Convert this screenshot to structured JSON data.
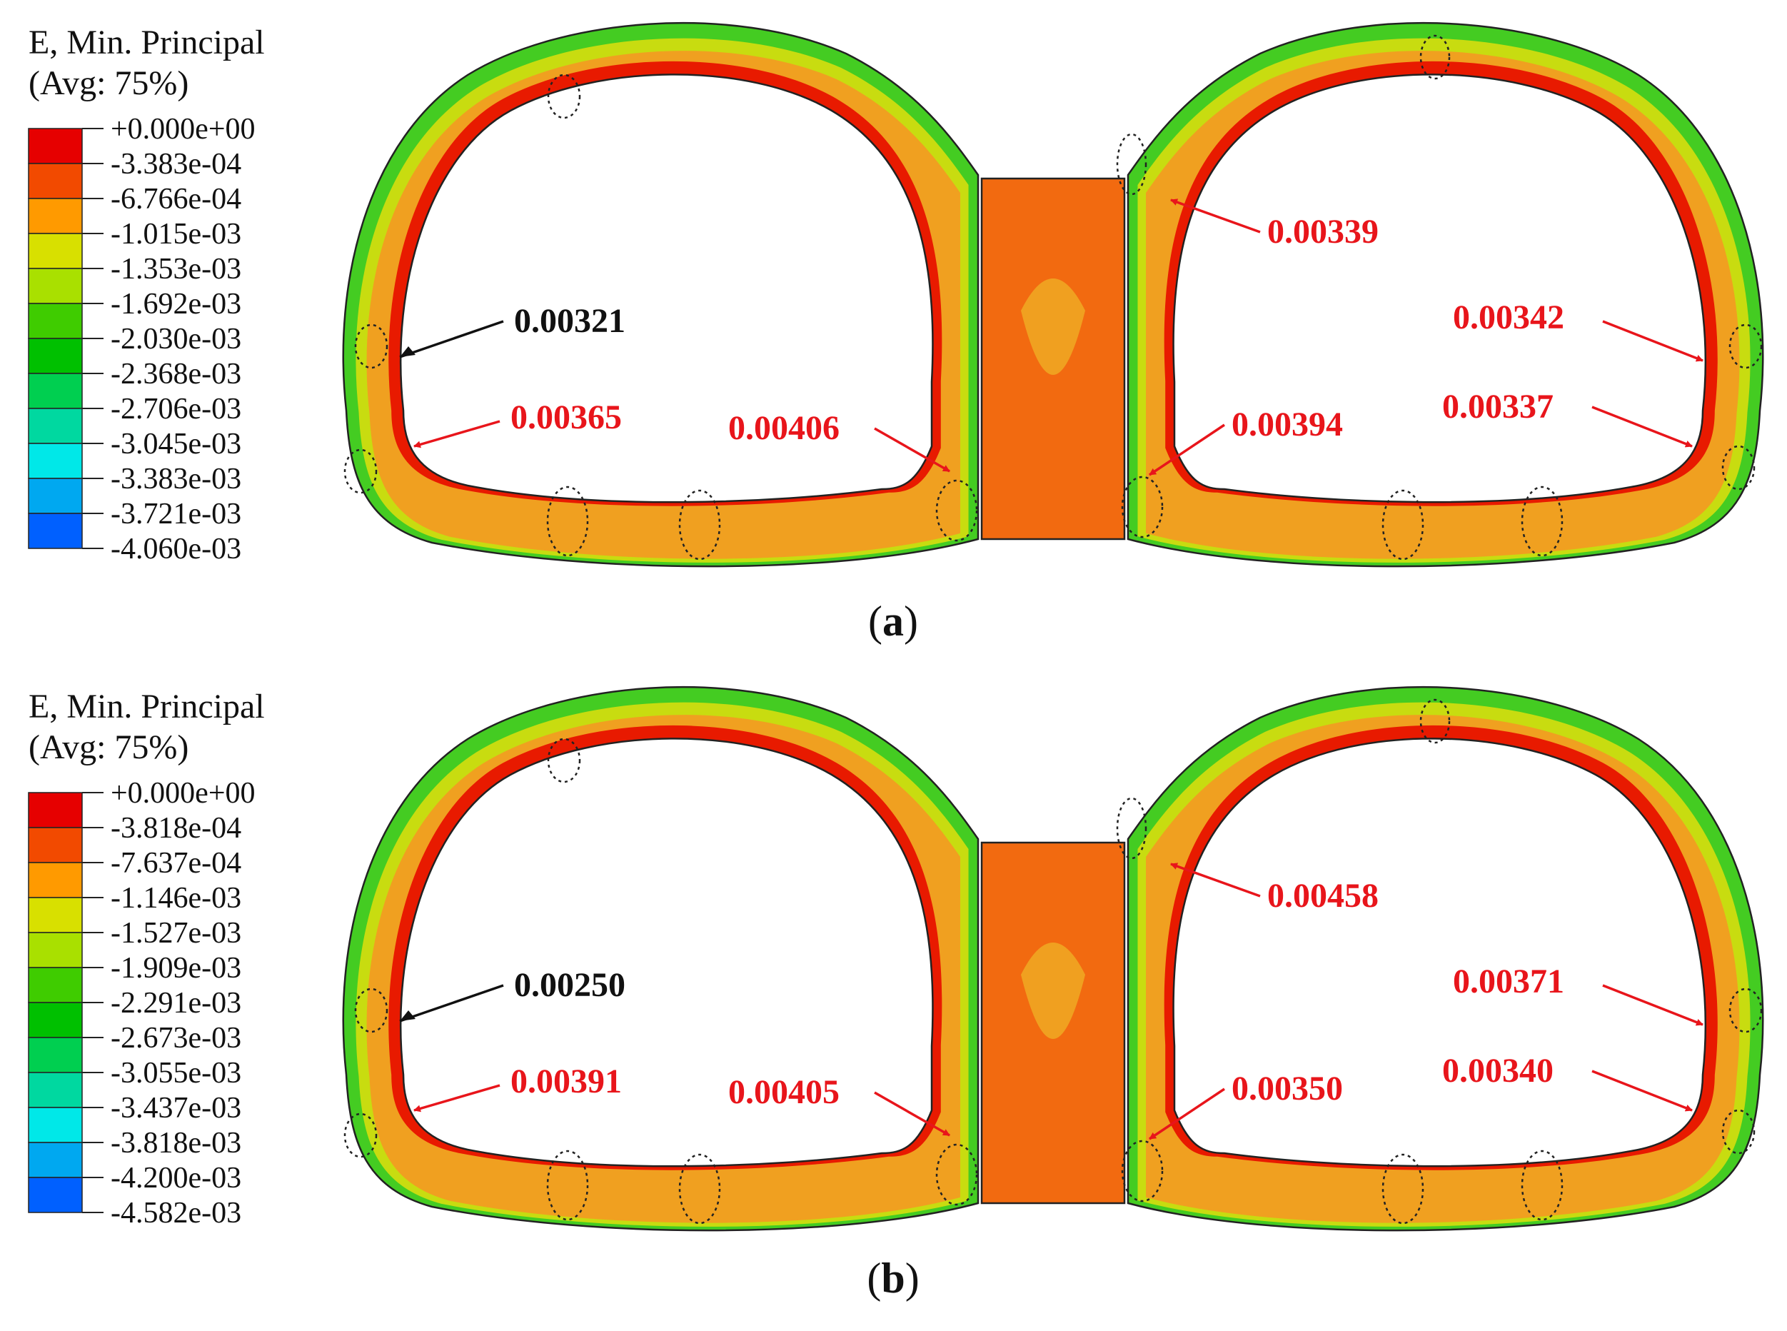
{
  "panels": [
    {
      "id": "a",
      "caption_letter": "a",
      "legend": {
        "title_line1": "E, Min. Principal",
        "title_line2": "(Avg: 75%)",
        "ticks": [
          "+0.000e+00",
          "-3.383e-04",
          "-6.766e-04",
          "-1.015e-03",
          "-1.353e-03",
          "-1.692e-03",
          "-2.030e-03",
          "-2.368e-03",
          "-2.706e-03",
          "-3.045e-03",
          "-3.383e-03",
          "-3.721e-03",
          "-4.060e-03"
        ]
      },
      "callouts": [
        {
          "text": "0.00339",
          "color": "#e8151b"
        },
        {
          "text": "0.00321",
          "color": "#111111"
        },
        {
          "text": "0.00342",
          "color": "#e8151b"
        },
        {
          "text": "0.00365",
          "color": "#e8151b"
        },
        {
          "text": "0.00406",
          "color": "#e8151b"
        },
        {
          "text": "0.00394",
          "color": "#e8151b"
        },
        {
          "text": "0.00337",
          "color": "#e8151b"
        }
      ]
    },
    {
      "id": "b",
      "caption_letter": "b",
      "legend": {
        "title_line1": "E, Min. Principal",
        "title_line2": "(Avg: 75%)",
        "ticks": [
          "+0.000e+00",
          "-3.818e-04",
          "-7.637e-04",
          "-1.146e-03",
          "-1.527e-03",
          "-1.909e-03",
          "-2.291e-03",
          "-2.673e-03",
          "-3.055e-03",
          "-3.437e-03",
          "-3.818e-03",
          "-4.200e-03",
          "-4.582e-03"
        ]
      },
      "callouts": [
        {
          "text": "0.00458",
          "color": "#e8151b"
        },
        {
          "text": "0.00250",
          "color": "#111111"
        },
        {
          "text": "0.00371",
          "color": "#e8151b"
        },
        {
          "text": "0.00391",
          "color": "#e8151b"
        },
        {
          "text": "0.00405",
          "color": "#e8151b"
        },
        {
          "text": "0.00350",
          "color": "#e8151b"
        },
        {
          "text": "0.00340",
          "color": "#e8151b"
        }
      ]
    }
  ],
  "colorbar": [
    "#e60000",
    "#f24a00",
    "#ff9a00",
    "#d8e000",
    "#a9e000",
    "#3fcc00",
    "#00c000",
    "#00cf50",
    "#00d8a0",
    "#00e8e8",
    "#00a8f0",
    "#0060ff",
    "#0020ff"
  ],
  "ring_colors": {
    "outer": "#44cc22",
    "middle": "#f0a020",
    "inner": "#e81a00",
    "accent": "#c8dc10",
    "pillar": "#f26a10"
  }
}
